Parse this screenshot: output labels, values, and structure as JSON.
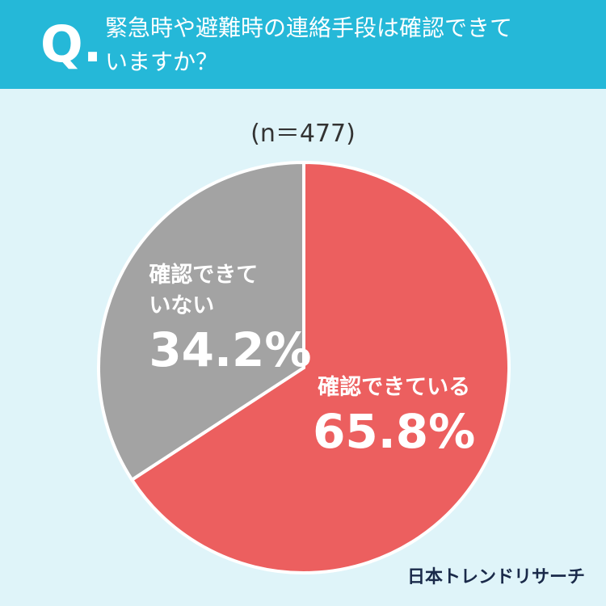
{
  "chart_data": {
    "type": "pie",
    "question_label": "Q.",
    "title": "緊急時や避難時の連絡手段は確認できていますか？",
    "subtitle": "(n＝477)",
    "categories": [
      "確認できている",
      "確認できていない"
    ],
    "values": [
      65.8,
      34.2
    ],
    "value_labels": [
      "65.8%",
      "34.2%"
    ],
    "colors": [
      "#ec5f5f",
      "#a3a3a3"
    ],
    "source": "日本トレンドリサーチ"
  }
}
